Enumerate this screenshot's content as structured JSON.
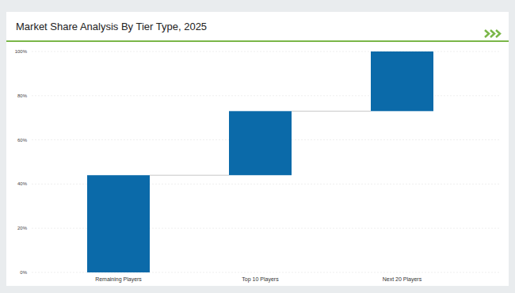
{
  "chart_data": {
    "type": "waterfall",
    "title": "Market Share Analysis By Tier Type, 2025",
    "categories": [
      "Remaining Players",
      "Top 10 Players",
      "Next 20 Players"
    ],
    "values": [
      44,
      29,
      27
    ],
    "color": "#0b6aa9",
    "ylim": [
      0,
      100
    ],
    "yticks": [
      {
        "value": 0,
        "label": "0%"
      },
      {
        "value": 20,
        "label": "20%"
      },
      {
        "value": 40,
        "label": "40%"
      },
      {
        "value": 60,
        "label": "60%"
      },
      {
        "value": 80,
        "label": "80%"
      },
      {
        "value": 100,
        "label": "100%"
      }
    ],
    "grid": true
  }
}
